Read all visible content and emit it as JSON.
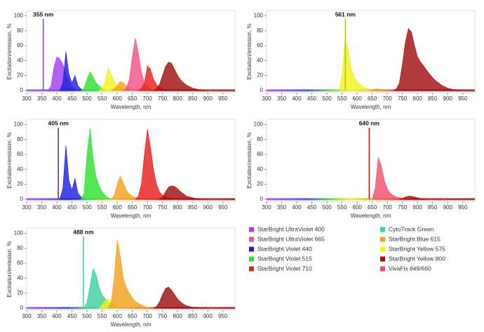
{
  "chart_data": [
    {
      "type": "area",
      "xlabel": "Wavelength, nm",
      "ylabel": "Excitation/emission, %",
      "xlim": [
        300,
        990
      ],
      "ylim": [
        -3,
        107
      ],
      "xticks": [
        300,
        350,
        400,
        450,
        500,
        550,
        600,
        650,
        700,
        750,
        800,
        850,
        900,
        950
      ],
      "yticks": [
        0,
        20,
        40,
        60,
        80,
        100
      ],
      "laser": {
        "value": 355,
        "label": "355 nm",
        "color": "#9b30d0"
      },
      "series": [
        {
          "color": "#a040f0",
          "x": [
            370,
            380,
            390,
            400,
            410,
            420,
            430,
            440,
            450,
            460
          ],
          "values": [
            0,
            5,
            30,
            45,
            42,
            35,
            22,
            12,
            5,
            2
          ]
        },
        {
          "color": "#2020e0",
          "x": [
            410,
            420,
            430,
            440,
            450,
            460,
            470,
            480,
            490
          ],
          "values": [
            0,
            10,
            52,
            22,
            10,
            20,
            6,
            2,
            0
          ]
        },
        {
          "color": "#30e030",
          "x": [
            480,
            490,
            500,
            510,
            520,
            530,
            540,
            550,
            560,
            570
          ],
          "values": [
            0,
            3,
            15,
            25,
            18,
            10,
            6,
            3,
            1,
            0
          ]
        },
        {
          "color": "#f0f020",
          "x": [
            540,
            550,
            560,
            570,
            580,
            590,
            600,
            610,
            620,
            630,
            640
          ],
          "values": [
            0,
            3,
            12,
            30,
            22,
            12,
            7,
            4,
            2,
            1,
            0
          ]
        },
        {
          "color": "#f0a020",
          "x": [
            580,
            590,
            600,
            610,
            620,
            630,
            640,
            650,
            660,
            670,
            680
          ],
          "values": [
            0,
            2,
            6,
            12,
            10,
            6,
            4,
            2,
            1,
            0,
            0
          ]
        },
        {
          "color": "#f0508a",
          "x": [
            620,
            630,
            640,
            650,
            660,
            670,
            680,
            690,
            700,
            710,
            720
          ],
          "values": [
            0,
            3,
            15,
            45,
            70,
            50,
            25,
            10,
            5,
            2,
            0
          ]
        },
        {
          "color": "#e82020",
          "x": [
            670,
            680,
            690,
            700,
            710,
            720,
            730,
            740,
            750,
            760,
            770,
            780
          ],
          "values": [
            0,
            3,
            10,
            33,
            28,
            15,
            8,
            4,
            2,
            1,
            0,
            0
          ]
        },
        {
          "color": "#a01010",
          "x": [
            720,
            730,
            740,
            750,
            760,
            770,
            780,
            790,
            800,
            810,
            820,
            830,
            840,
            850,
            860,
            870,
            880,
            890,
            900
          ],
          "values": [
            0,
            2,
            8,
            20,
            32,
            38,
            36,
            28,
            20,
            14,
            10,
            7,
            5,
            3,
            2,
            1,
            1,
            0,
            0
          ]
        }
      ]
    },
    {
      "type": "area",
      "xlabel": "Wavelength, nm",
      "ylabel": "Excitation/emission, %",
      "xlim": [
        300,
        990
      ],
      "ylim": [
        -3,
        107
      ],
      "xticks": [
        300,
        350,
        400,
        450,
        500,
        550,
        600,
        650,
        700,
        750,
        800,
        850,
        900,
        950
      ],
      "yticks": [
        0,
        20,
        40,
        60,
        80,
        100
      ],
      "laser": {
        "value": 561,
        "label": "561 nm",
        "color": "#b8c400"
      },
      "series": [
        {
          "color": "#f0f020",
          "x": [
            540,
            550,
            560,
            570,
            580,
            590,
            600,
            610,
            620,
            630,
            640,
            650,
            660,
            670,
            680
          ],
          "values": [
            0,
            20,
            68,
            55,
            30,
            18,
            12,
            8,
            5,
            3,
            2,
            1,
            0,
            0,
            0
          ]
        },
        {
          "color": "#f0a020",
          "x": [
            640,
            650,
            660,
            670,
            680,
            690
          ],
          "values": [
            0,
            1,
            2,
            2,
            1,
            0
          ]
        },
        {
          "color": "#a01010",
          "x": [
            720,
            730,
            740,
            750,
            760,
            770,
            780,
            790,
            800,
            810,
            820,
            830,
            840,
            850,
            860,
            870,
            880,
            890,
            900,
            910,
            920,
            930,
            940,
            950,
            960
          ],
          "values": [
            0,
            2,
            10,
            35,
            65,
            83,
            78,
            60,
            45,
            38,
            33,
            27,
            22,
            17,
            13,
            10,
            7,
            5,
            3,
            2,
            1,
            1,
            0,
            0,
            0
          ]
        }
      ]
    },
    {
      "type": "area",
      "xlabel": "Wavelength, nm",
      "ylabel": "Excitation/emission, %",
      "xlim": [
        300,
        990
      ],
      "ylim": [
        -3,
        107
      ],
      "xticks": [
        300,
        350,
        400,
        450,
        500,
        550,
        600,
        650,
        700,
        750,
        800,
        850,
        900,
        950
      ],
      "yticks": [
        0,
        20,
        40,
        60,
        80,
        100
      ],
      "laser": {
        "value": 405,
        "label": "405 nm",
        "color": "#6a1aa0"
      },
      "series": [
        {
          "color": "#2020e0",
          "x": [
            410,
            420,
            430,
            440,
            450,
            460,
            470,
            480,
            490
          ],
          "values": [
            0,
            15,
            72,
            25,
            12,
            28,
            8,
            3,
            0
          ]
        },
        {
          "color": "#30e030",
          "x": [
            480,
            490,
            500,
            510,
            520,
            530,
            540,
            550,
            560,
            570,
            580
          ],
          "values": [
            0,
            8,
            60,
            95,
            55,
            30,
            18,
            10,
            5,
            2,
            0
          ]
        },
        {
          "color": "#f0a020",
          "x": [
            580,
            590,
            600,
            610,
            620,
            630,
            640,
            650,
            660,
            670,
            680
          ],
          "values": [
            0,
            5,
            20,
            31,
            22,
            12,
            7,
            4,
            2,
            1,
            0
          ]
        },
        {
          "color": "#e82020",
          "x": [
            660,
            670,
            680,
            690,
            700,
            710,
            720,
            730,
            740,
            750,
            760,
            770,
            780,
            790
          ],
          "values": [
            0,
            4,
            20,
            60,
            94,
            70,
            40,
            20,
            10,
            5,
            3,
            2,
            1,
            0
          ]
        },
        {
          "color": "#a01010",
          "x": [
            740,
            750,
            760,
            770,
            780,
            790,
            800,
            810,
            820,
            830,
            840,
            850,
            860,
            870,
            880,
            890,
            900
          ],
          "values": [
            0,
            3,
            10,
            16,
            18,
            17,
            14,
            10,
            7,
            4,
            3,
            2,
            1,
            1,
            0,
            0,
            0
          ]
        }
      ]
    },
    {
      "type": "area",
      "xlabel": "Wavelength, nm",
      "ylabel": "Excitation/emission, %",
      "xlim": [
        300,
        990
      ],
      "ylim": [
        -3,
        107
      ],
      "xticks": [
        300,
        350,
        400,
        450,
        500,
        550,
        600,
        650,
        700,
        750,
        800,
        850,
        900,
        950
      ],
      "yticks": [
        0,
        20,
        40,
        60,
        80,
        100
      ],
      "laser": {
        "value": 640,
        "label": "640 nm",
        "color": "#d01010"
      },
      "series": [
        {
          "color": "#f05070",
          "x": [
            650,
            660,
            670,
            680,
            690,
            700,
            710,
            720,
            730,
            740,
            750,
            760,
            770,
            780
          ],
          "values": [
            0,
            15,
            56,
            45,
            25,
            14,
            8,
            5,
            3,
            2,
            1,
            1,
            0,
            0
          ]
        },
        {
          "color": "#a01010",
          "x": [
            740,
            750,
            760,
            770,
            780,
            790,
            800,
            810,
            820,
            830,
            840,
            850,
            860,
            870,
            880
          ],
          "values": [
            0,
            1,
            3,
            4,
            4,
            3,
            2,
            1,
            1,
            0,
            0,
            0,
            0,
            0,
            0
          ]
        }
      ]
    },
    {
      "type": "area",
      "xlabel": "Wavelength, nm",
      "ylabel": "Excitation/emission, %",
      "xlim": [
        300,
        990
      ],
      "ylim": [
        -3,
        107
      ],
      "xticks": [
        300,
        350,
        400,
        450,
        500,
        550,
        600,
        650,
        700,
        750,
        800,
        850,
        900,
        950
      ],
      "yticks": [
        0,
        20,
        40,
        60,
        80,
        100
      ],
      "laser": {
        "value": 488,
        "label": "488 nm",
        "color": "#40c8b0"
      },
      "series": [
        {
          "color": "#40d0a0",
          "x": [
            490,
            500,
            510,
            520,
            530,
            540,
            550,
            560,
            570,
            580,
            590,
            600,
            610,
            620
          ],
          "values": [
            0,
            8,
            30,
            53,
            45,
            28,
            18,
            12,
            8,
            5,
            3,
            2,
            1,
            0
          ]
        },
        {
          "color": "#f0f020",
          "x": [
            540,
            550,
            560,
            570,
            580,
            590,
            600,
            610,
            620
          ],
          "values": [
            0,
            4,
            10,
            12,
            9,
            6,
            3,
            1,
            0
          ]
        },
        {
          "color": "#f0a020",
          "x": [
            570,
            580,
            590,
            600,
            610,
            620,
            630,
            640,
            650,
            660,
            670,
            680,
            690,
            700,
            710,
            720
          ],
          "values": [
            0,
            8,
            40,
            91,
            70,
            40,
            28,
            20,
            14,
            9,
            6,
            4,
            2,
            1,
            0,
            0
          ]
        },
        {
          "color": "#a01010",
          "x": [
            720,
            730,
            740,
            750,
            760,
            770,
            780,
            790,
            800,
            810,
            820,
            830,
            840,
            850,
            860,
            870,
            880,
            890,
            900
          ],
          "values": [
            0,
            2,
            8,
            18,
            26,
            28,
            24,
            18,
            12,
            8,
            5,
            3,
            2,
            1,
            1,
            0,
            0,
            0,
            0
          ]
        }
      ]
    }
  ],
  "legend": [
    {
      "name": "StarBright UltraViolet 400",
      "color": "#a040f0"
    },
    {
      "name": "StarBright UltraViolet 665",
      "color": "#f0508a"
    },
    {
      "name": "StarBright Violet 440",
      "color": "#2020e0"
    },
    {
      "name": "StarBright Violet 515",
      "color": "#30e030"
    },
    {
      "name": "StarBright Violet 710",
      "color": "#e82020"
    },
    {
      "name": "CytoTrack Green",
      "color": "#40d0a0"
    },
    {
      "name": "StarBright Blue 615",
      "color": "#f0a020"
    },
    {
      "name": "StarBright Yellow 575",
      "color": "#f0f020"
    },
    {
      "name": "StarBright Yellow 800",
      "color": "#a01010"
    },
    {
      "name": "VivaFix 649/660",
      "color": "#f05070"
    }
  ]
}
